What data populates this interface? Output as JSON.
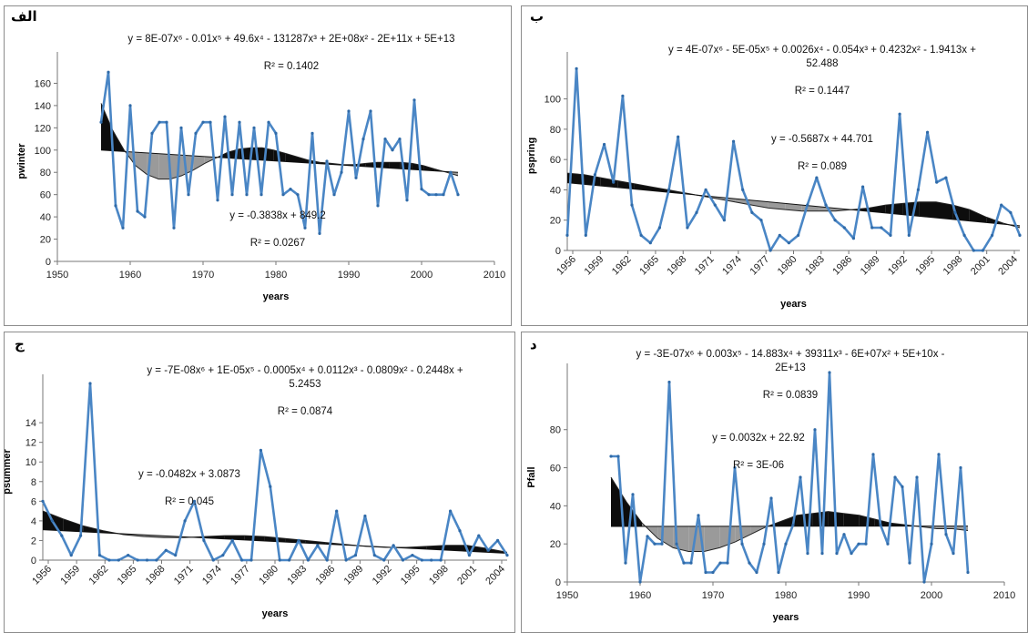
{
  "chart_data": [
    {
      "id": "winter",
      "label": "الف",
      "type": "line",
      "xlabel": "years",
      "ylabel": "pwinter",
      "xlim": [
        1950,
        2010
      ],
      "ylim": [
        0,
        180
      ],
      "xticks": [
        "1950",
        "1960",
        "1970",
        "1980",
        "1990",
        "2000",
        "2010"
      ],
      "yticks": [
        "0",
        "20",
        "40",
        "60",
        "80",
        "100",
        "120",
        "140",
        "160"
      ],
      "poly_equation": "y = 8E-07x⁶ - 0.01x⁵ + 49.6x⁴ - 131287x³ + 2E+08x² - 2E+11x + 5E+13",
      "poly_r2": "R² = 0.1402",
      "linear_equation": "y = -0.3838x + 849.2",
      "linear_r2": "R² = 0.0267",
      "x": [
        1956,
        1957,
        1958,
        1959,
        1960,
        1961,
        1962,
        1963,
        1964,
        1965,
        1966,
        1967,
        1968,
        1969,
        1970,
        1971,
        1972,
        1973,
        1974,
        1975,
        1976,
        1977,
        1978,
        1979,
        1980,
        1981,
        1982,
        1983,
        1984,
        1985,
        1986,
        1987,
        1988,
        1989,
        1990,
        1991,
        1992,
        1993,
        1994,
        1995,
        1996,
        1997,
        1998,
        1999,
        2000,
        2001,
        2002,
        2003,
        2004,
        2005
      ],
      "values": [
        125,
        170,
        50,
        30,
        140,
        45,
        40,
        115,
        125,
        125,
        30,
        120,
        60,
        115,
        125,
        125,
        55,
        130,
        60,
        125,
        60,
        120,
        60,
        125,
        115,
        60,
        65,
        60,
        30,
        115,
        25,
        90,
        60,
        80,
        135,
        75,
        110,
        135,
        50,
        110,
        100,
        110,
        55,
        145,
        65,
        60,
        60,
        60,
        80,
        60
      ],
      "trend_linear": [
        100,
        80
      ],
      "trend_poly": [
        142,
        118,
        100,
        86,
        78,
        74,
        74,
        77,
        82,
        88,
        93,
        98,
        101,
        102,
        102,
        100,
        97,
        94,
        91,
        89,
        88,
        87,
        87,
        88,
        89,
        89,
        89,
        88,
        86,
        83,
        80,
        77
      ]
    },
    {
      "id": "spring",
      "label": "ب",
      "type": "line",
      "xlabel": "years",
      "ylabel": "pspring",
      "xlim": [
        1956,
        2005
      ],
      "ylim": [
        0,
        125
      ],
      "xticks": [
        "1956",
        "1959",
        "1962",
        "1965",
        "1968",
        "1971",
        "1974",
        "1977",
        "1980",
        "1983",
        "1986",
        "1989",
        "1992",
        "1995",
        "1998",
        "2001",
        "2004"
      ],
      "yticks": [
        "0",
        "20",
        "40",
        "60",
        "80",
        "100"
      ],
      "poly_equation": "y = 4E-07x⁶ - 5E-05x⁵ + 0.0026x⁴ - 0.054x³ + 0.4232x² - 1.9413x +\n52.488",
      "poly_r2": "R² = 0.1447",
      "linear_equation": "y = -0.5687x + 44.701",
      "linear_r2": "R² = 0.089",
      "x": [
        1956,
        1957,
        1958,
        1959,
        1960,
        1961,
        1962,
        1963,
        1964,
        1965,
        1966,
        1967,
        1968,
        1969,
        1970,
        1971,
        1972,
        1973,
        1974,
        1975,
        1976,
        1977,
        1978,
        1979,
        1980,
        1981,
        1982,
        1983,
        1984,
        1985,
        1986,
        1987,
        1988,
        1989,
        1990,
        1991,
        1992,
        1993,
        1994,
        1995,
        1996,
        1997,
        1998,
        1999,
        2000,
        2001,
        2002,
        2003,
        2004,
        2005
      ],
      "values": [
        10,
        120,
        10,
        50,
        70,
        45,
        102,
        30,
        10,
        5,
        15,
        40,
        75,
        15,
        25,
        40,
        30,
        20,
        72,
        40,
        25,
        20,
        0,
        10,
        5,
        10,
        30,
        48,
        30,
        20,
        15,
        8,
        42,
        15,
        15,
        10,
        90,
        10,
        40,
        78,
        45,
        48,
        25,
        10,
        0,
        0,
        10,
        30,
        25,
        10
      ],
      "trend_linear": [
        44.7,
        16.3
      ],
      "trend_poly": [
        51,
        50,
        48,
        46,
        44,
        42,
        40,
        38,
        36,
        34,
        32,
        30,
        28,
        27,
        26,
        26,
        26,
        27,
        28,
        30,
        31,
        32,
        32,
        30,
        27,
        22,
        18,
        15
      ]
    },
    {
      "id": "summer",
      "label": "ج",
      "type": "line",
      "xlabel": "years",
      "ylabel": "psummer",
      "xlim": [
        1956,
        2005
      ],
      "ylim": [
        0,
        18
      ],
      "xticks": [
        "1956",
        "1959",
        "1962",
        "1965",
        "1968",
        "1971",
        "1974",
        "1977",
        "1980",
        "1983",
        "1986",
        "1989",
        "1992",
        "1995",
        "1998",
        "2001",
        "2004"
      ],
      "yticks": [
        "0",
        "2",
        "4",
        "6",
        "8",
        "10",
        "12",
        "14"
      ],
      "poly_equation": "y = -7E-08x⁶ + 1E-05x⁵ - 0.0005x⁴ + 0.0112x³ - 0.0809x² - 0.2448x +\n5.2453",
      "poly_r2": "R² = 0.0874",
      "linear_equation": "y = -0.0482x + 3.0873",
      "linear_r2": "R² = 0.045",
      "x": [
        1956,
        1957,
        1958,
        1959,
        1960,
        1961,
        1962,
        1963,
        1964,
        1965,
        1966,
        1967,
        1968,
        1969,
        1970,
        1971,
        1972,
        1973,
        1974,
        1975,
        1976,
        1977,
        1978,
        1979,
        1980,
        1981,
        1982,
        1983,
        1984,
        1985,
        1986,
        1987,
        1988,
        1989,
        1990,
        1991,
        1992,
        1993,
        1994,
        1995,
        1996,
        1997,
        1998,
        1999,
        2000,
        2001,
        2002,
        2003,
        2004,
        2005
      ],
      "values": [
        6,
        4,
        2.5,
        0.5,
        2.5,
        18,
        0.5,
        0,
        0,
        0.5,
        0,
        0,
        0,
        1,
        0.5,
        4,
        6,
        2,
        0,
        0.5,
        2,
        0,
        0,
        11.2,
        7.5,
        0,
        0,
        2,
        0,
        1.5,
        0,
        5,
        0,
        0.5,
        4.5,
        0.5,
        0,
        1.5,
        0,
        0.5,
        0,
        0,
        0,
        5,
        3,
        0.5,
        2.5,
        1,
        2,
        0.5
      ],
      "trend_linear": [
        3.1,
        0.7
      ],
      "trend_poly": [
        5,
        4.2,
        3.5,
        3.0,
        2.6,
        2.4,
        2.3,
        2.3,
        2.4,
        2.5,
        2.5,
        2.4,
        2.2,
        2.0,
        1.8,
        1.6,
        1.4,
        1.3,
        1.3,
        1.4,
        1.5,
        1.5,
        1.2,
        0.8
      ]
    },
    {
      "id": "fall",
      "label": "د",
      "type": "line",
      "xlabel": "years",
      "ylabel": "Pfall",
      "xlim": [
        1950,
        2010
      ],
      "ylim": [
        0,
        110
      ],
      "xticks": [
        "1950",
        "1960",
        "1970",
        "1980",
        "1990",
        "2000",
        "2010"
      ],
      "yticks": [
        "0",
        "20",
        "40",
        "60",
        "80"
      ],
      "poly_equation": "y = -3E-07x⁶ + 0.003x⁵ - 14.883x⁴ + 39311x³ - 6E+07x² + 5E+10x -\n2E+13",
      "poly_r2": "R² = 0.0839",
      "linear_equation": "y = 0.0032x + 22.92",
      "linear_r2": "R² = 3E-06",
      "x": [
        1956,
        1957,
        1958,
        1959,
        1960,
        1961,
        1962,
        1963,
        1964,
        1965,
        1966,
        1967,
        1968,
        1969,
        1970,
        1971,
        1972,
        1973,
        1974,
        1975,
        1976,
        1977,
        1978,
        1979,
        1980,
        1981,
        1982,
        1983,
        1984,
        1985,
        1986,
        1987,
        1988,
        1989,
        1990,
        1991,
        1992,
        1993,
        1994,
        1995,
        1996,
        1997,
        1998,
        1999,
        2000,
        2001,
        2002,
        2003,
        2004,
        2005
      ],
      "values": [
        66,
        66,
        10,
        46,
        0,
        24,
        20,
        20,
        105,
        20,
        10,
        10,
        35,
        5,
        5,
        10,
        10,
        60,
        20,
        10,
        5,
        20,
        44,
        5,
        20,
        30,
        55,
        15,
        80,
        15,
        110,
        15,
        25,
        15,
        20,
        20,
        67,
        30,
        20,
        55,
        50,
        10,
        55,
        0,
        20,
        67,
        25,
        15,
        60,
        5
      ],
      "trend_linear": [
        29.2,
        29.35
      ],
      "trend_poly": [
        55,
        42,
        31,
        23,
        18,
        16,
        16,
        18,
        21,
        25,
        29,
        32,
        35,
        36,
        37,
        36,
        35,
        33,
        31,
        30,
        29,
        28,
        28,
        27
      ]
    }
  ]
}
